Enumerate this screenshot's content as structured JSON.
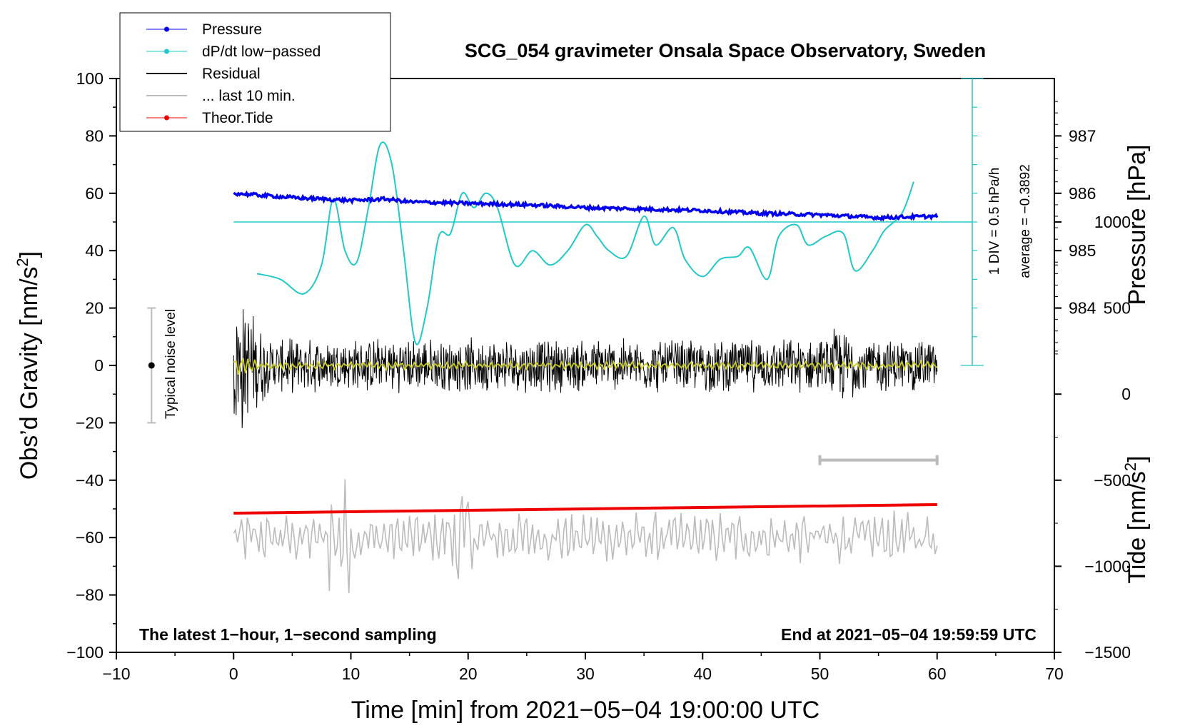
{
  "chart_data": {
    "type": "line",
    "title": "SCG_054 gravimeter Onsala Space Observatory, Sweden",
    "xlabel": "Time [min] from 2021−05−04 19:00:00 UTC",
    "ylabel_left": "Obs’d Gravity [nm/s",
    "ylabel_left_sup": "2",
    "ylabel_left_close": "]",
    "ylabel_right_pressure": "Pressure [hPa]",
    "ylabel_right_tide": "Tide [nm/s",
    "ylabel_right_tide_sup": "2",
    "ylabel_right_tide_close": "]",
    "xlim": [
      -10,
      70
    ],
    "ylim": [
      -100,
      100
    ],
    "x_ticks": [
      -10,
      0,
      10,
      20,
      30,
      40,
      50,
      60,
      70
    ],
    "x_tick_labels": [
      "−10",
      "0",
      "10",
      "20",
      "30",
      "40",
      "50",
      "60",
      "70"
    ],
    "y_ticks": [
      100,
      80,
      60,
      40,
      20,
      0,
      -20,
      -40,
      -60,
      -80,
      -100
    ],
    "y_tick_labels": [
      "100",
      "80",
      "60",
      "40",
      "20",
      "0",
      "−20",
      "−40",
      "−60",
      "−80",
      "−100"
    ],
    "pressure_ticks": [
      987,
      986,
      985,
      984
    ],
    "pressure_tick_labels": [
      "987",
      "986",
      "985",
      "984"
    ],
    "pressure_axis": {
      "value_at_gravity_80": 987,
      "hpa_per_20_gravity": 1
    },
    "tide_ticks": [
      1000,
      500,
      0,
      -500,
      -1000,
      -1500
    ],
    "tide_tick_labels": [
      "1000",
      "500",
      "0",
      "−500",
      "−1000",
      "−1500"
    ],
    "tide_axis": {
      "value_at_gravity_minus_100": -1500,
      "per_gravity_unit": 16.667
    },
    "legend": {
      "placement": "top-left",
      "entries": [
        {
          "label": "Pressure",
          "color": "#0000ee",
          "style": "line-dot"
        },
        {
          "label": "dP/dt low−passed",
          "color": "#22c8c8",
          "style": "line-dot"
        },
        {
          "label": "Residual",
          "color": "#000000",
          "style": "line"
        },
        {
          "label": "... last 10 min.",
          "color": "#bbbbbb",
          "style": "line"
        },
        {
          "label": "Theor.Tide",
          "color": "#ee0000",
          "style": "line-dot"
        }
      ]
    },
    "series": [
      {
        "name": "Pressure",
        "color": "#0000ee",
        "units": "nm/s2-equivalent on left axis",
        "x": [
          0,
          5,
          10,
          13,
          15,
          20,
          25,
          30,
          35,
          40,
          45,
          50,
          55,
          60
        ],
        "y": [
          60,
          58.5,
          57.5,
          58,
          57,
          56.5,
          56,
          55,
          54.5,
          54,
          53,
          52.5,
          51.5,
          52
        ]
      },
      {
        "name": "dP/dt low−passed",
        "color": "#22c8c8",
        "x": [
          2,
          4,
          6,
          7.5,
          8.5,
          9.5,
          10.5,
          11.5,
          12.5,
          13.5,
          14.5,
          15.5,
          16.5,
          17.5,
          18.5,
          19.5,
          20.5,
          21.5,
          22.5,
          24,
          25.5,
          27,
          28.5,
          30,
          31,
          32,
          33.5,
          35,
          36,
          37.5,
          38.5,
          40,
          41.5,
          43,
          44,
          45.5,
          46.5,
          48,
          49,
          50.5,
          52,
          53,
          54.5,
          55.5,
          57,
          58
        ],
        "y": [
          32,
          30,
          25,
          35,
          58,
          40,
          36,
          55,
          77,
          70,
          40,
          8,
          20,
          45,
          46,
          60,
          55,
          60,
          55,
          35,
          40,
          35,
          40,
          49,
          45,
          40,
          38,
          52,
          42,
          48,
          37,
          31,
          37,
          38,
          41,
          30,
          45,
          49,
          42,
          45,
          46,
          33,
          40,
          47,
          53,
          64
        ]
      },
      {
        "name": "Residual",
        "color": "#000000",
        "x": [
          0,
          60
        ],
        "amplitude_nm_s2": [
          30,
          10
        ],
        "note": "high-frequency noise centred on 0"
      },
      {
        "name": "Residual low-passed",
        "color": "#cccc22",
        "x": [
          0,
          60
        ],
        "y": [
          0,
          0
        ]
      },
      {
        "name": "... last 10 min.",
        "color": "#bbbbbb",
        "x": [
          0,
          60
        ],
        "center_y": -60,
        "amplitude_nm_s2": [
          8,
          18
        ]
      },
      {
        "name": "Theor.Tide",
        "color": "#ee0000",
        "x": [
          0,
          20,
          40,
          60
        ],
        "y": [
          -51.5,
          -50.5,
          -49.5,
          -48.5
        ]
      }
    ],
    "pressure_average_line": {
      "y": 50,
      "color": "#22c8c8"
    },
    "dpdt_scale_bar": {
      "x": 63,
      "y_range": [
        0,
        100
      ],
      "divisions": 10,
      "label_div": "1 DIV = 0.5 hPa/h",
      "label_avg": "average = −0.3892"
    },
    "noise_level_bar": {
      "x": -7,
      "y_range": [
        -20,
        20
      ],
      "center": 0,
      "label": "Typical noise level"
    },
    "scale_segment_last10": {
      "x_range": [
        50,
        60
      ],
      "y": -33
    },
    "annotations": {
      "left": "The latest 1−hour, 1−second sampling",
      "right": "End at 2021−05−04 19:59:59 UTC"
    }
  }
}
